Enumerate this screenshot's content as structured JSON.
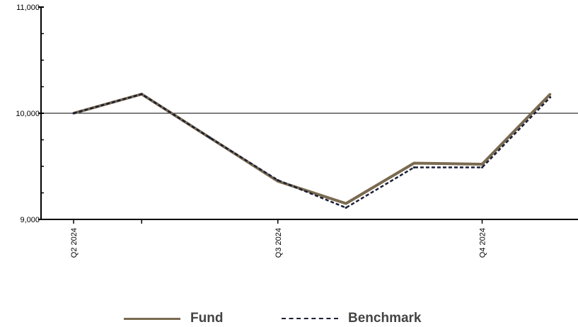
{
  "chart_data": {
    "type": "line",
    "x": [
      "2024-04-01",
      "2024-05-01",
      "2024-06-01",
      "2024-07-01",
      "2024-08-01",
      "2024-09-01",
      "2024-10-01",
      "2024-11-01",
      "2024-12-01"
    ],
    "x_tick_labels": [
      {
        "x": "2024-04-01",
        "label": "Q2 2024"
      },
      {
        "x": "2024-05-01",
        "label": ""
      },
      {
        "x": "2024-07-01",
        "label": "Q3 2024"
      },
      {
        "x": "2024-10-01",
        "label": "Q4 2024"
      }
    ],
    "series": [
      {
        "name": "Fund",
        "color": "#7a6a50",
        "style": "solid",
        "values": [
          10000,
          10180,
          9770,
          9360,
          9150,
          9530,
          9520,
          10180,
          null
        ]
      },
      {
        "name": "Benchmark",
        "color": "#1a1f36",
        "style": "dashed",
        "values": [
          10000,
          10180,
          9770,
          9370,
          9110,
          9490,
          9490,
          10150,
          null
        ]
      }
    ],
    "y_ticks": [
      9000,
      10000,
      11000
    ],
    "y_tick_labels": [
      "9,000",
      "10,000",
      "11,000"
    ],
    "ylim": [
      9000,
      11000
    ],
    "reference_line": 10000,
    "legend_position": "bottom-center"
  }
}
